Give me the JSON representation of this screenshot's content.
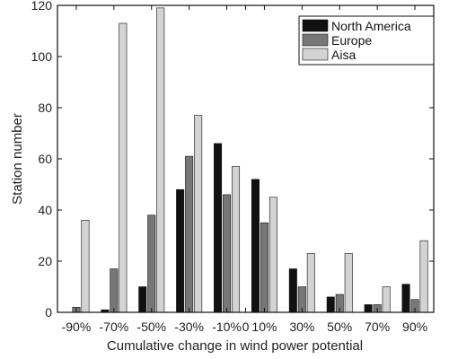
{
  "chart_data": {
    "type": "bar",
    "title": "",
    "xlabel": "Cumulative change in wind power potential",
    "ylabel": "Station number",
    "ylim": [
      0,
      120
    ],
    "yticks": [
      0,
      20,
      40,
      60,
      80,
      100,
      120
    ],
    "xlim": [
      -100,
      100
    ],
    "xtick_positions": [
      -90,
      -70,
      -50,
      -30,
      -10,
      0,
      10,
      30,
      50,
      70,
      90
    ],
    "xtick_labels": [
      "-90%",
      "-70%",
      "-50%",
      "-30%",
      "-10%",
      "0",
      "10%",
      "30%",
      "50%",
      "70%",
      "90%"
    ],
    "bin_centers": [
      -90,
      -70,
      -50,
      -30,
      -10,
      10,
      30,
      50,
      70,
      90
    ],
    "legend_position": "top-right",
    "grid": false,
    "series": [
      {
        "name": "North America",
        "color": "#111111",
        "values": [
          0,
          1,
          10,
          48,
          66,
          52,
          17,
          6,
          3,
          11
        ]
      },
      {
        "name": "Europe",
        "color": "#777777",
        "values": [
          2,
          17,
          38,
          61,
          46,
          35,
          10,
          7,
          3,
          5
        ]
      },
      {
        "name": "Aisa",
        "color": "#d3d3d3",
        "values": [
          36,
          113,
          119,
          77,
          57,
          45,
          23,
          23,
          10,
          28
        ]
      }
    ]
  }
}
